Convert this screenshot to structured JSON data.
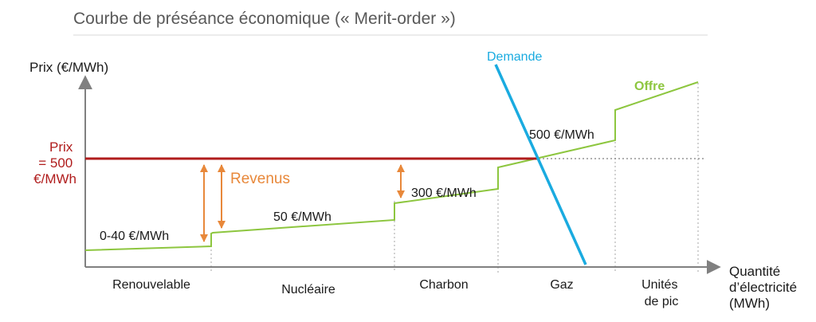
{
  "title": "Courbe de préséance économique (« Merit-order »)",
  "axes": {
    "y_label": "Prix (€/MWh)",
    "x_label_lines": [
      "Quantité",
      "d’électricité",
      "(MWh)"
    ]
  },
  "price": {
    "label_lines": [
      "Prix",
      "= 500",
      "€/MWh"
    ],
    "color": "#b01c1c"
  },
  "revenue": {
    "label": "Revenus",
    "color": "#e8883a"
  },
  "curves": {
    "supply_label": "Offre",
    "supply_color": "#8dc63f",
    "demand_label": "Demande",
    "demand_color": "#1aabe0"
  },
  "steps": {
    "renewable": "0-40 €/MWh",
    "nuclear": "50 €/MWh",
    "coal": "300 €/MWh",
    "gas": "500 €/MWh"
  },
  "categories": {
    "renewable": "Renouvelable",
    "nuclear": "Nucléaire",
    "coal": "Charbon",
    "gas": "Gaz",
    "peak_lines": [
      "Unités",
      "de pic"
    ]
  },
  "colors": {
    "axis": "#808080",
    "divider": "#a6a6a6",
    "title_rule": "#d9d9d9",
    "text": "#1a1a1a"
  }
}
